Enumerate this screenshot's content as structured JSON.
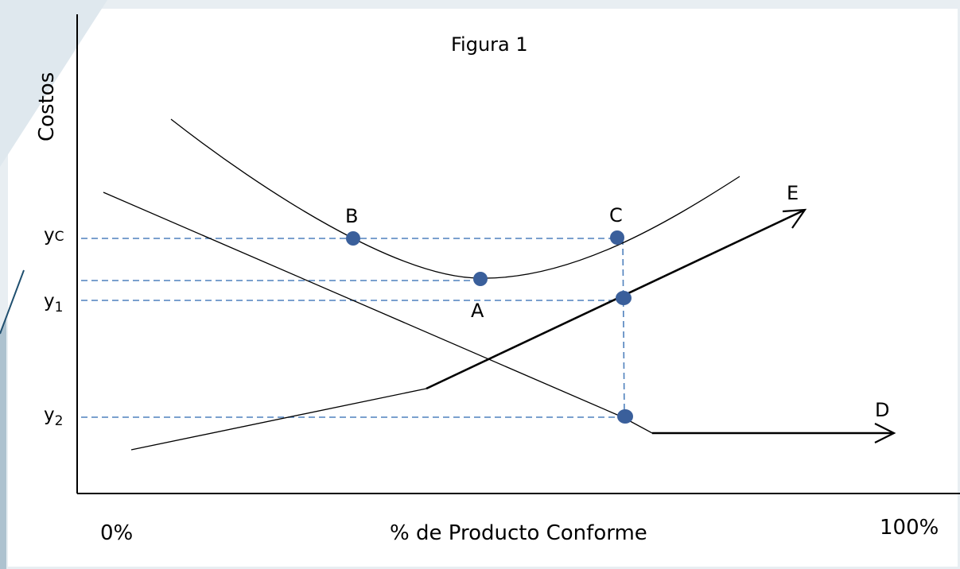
{
  "figure": {
    "title": "Figura 1",
    "y_axis_label": "Costos",
    "x_axis_label": "% de Producto Conforme",
    "x_min_label": "0%",
    "x_max_label": "100%",
    "y_ticks": {
      "yc_main": "y",
      "yc_sub": "C",
      "y1_main": "y",
      "y1_sub": "1",
      "y2_main": "y",
      "y2_sub": "2"
    },
    "points": {
      "a": "A",
      "b": "B",
      "c": "C",
      "d": "D",
      "e": "E"
    }
  },
  "colors": {
    "background": "#e8eef2",
    "panel": "#ffffff",
    "curve": "#000000",
    "dashed": "#4f81bd",
    "marker": "#3a5f9b"
  }
}
